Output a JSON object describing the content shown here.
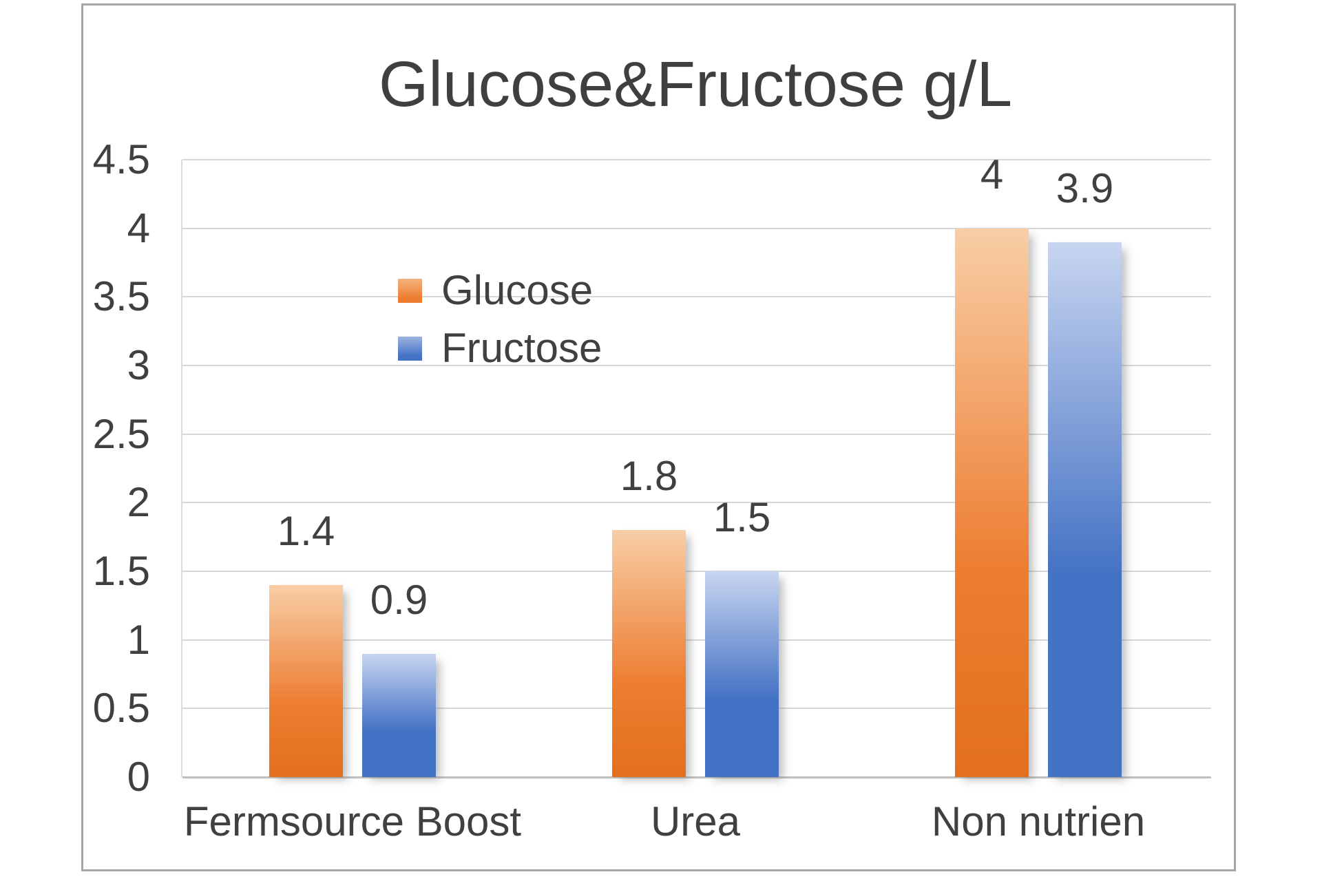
{
  "title": "Glucose&Fructose g/L",
  "chart_data": {
    "type": "bar",
    "title": "Glucose&Fructose g/L",
    "categories": [
      "Fermsource Boost",
      "Urea",
      "Non nutrien"
    ],
    "series": [
      {
        "name": "Glucose",
        "values": [
          1.4,
          1.8,
          4
        ],
        "data_labels": [
          "1.4",
          "1.8",
          "4"
        ],
        "color": "#ED7D31",
        "color_light": "#F8CEA6",
        "color_dark": "#E2701D"
      },
      {
        "name": "Fructose",
        "values": [
          0.9,
          1.5,
          3.9
        ],
        "data_labels": [
          "0.9",
          "1.5",
          "3.9"
        ],
        "color": "#4472C4",
        "color_light": "#C8D5F0",
        "color_dark": "#4472C4"
      }
    ],
    "xlabel": "",
    "ylabel": "",
    "ylim": [
      0,
      4.5
    ],
    "ytick_step": 0.5,
    "ytick_labels": [
      "4.5",
      "4",
      "3.5",
      "3",
      "2.5",
      "2",
      "1.5",
      "1",
      "0.5",
      "0"
    ],
    "grid": true,
    "legend_position": "inside-upper-left",
    "colors": {
      "text": "#404040",
      "gridline": "#D7D7D7",
      "axis_line": "#BFBFBF",
      "frame_border": "#A6A6A6",
      "background": "#FFFFFF"
    }
  }
}
